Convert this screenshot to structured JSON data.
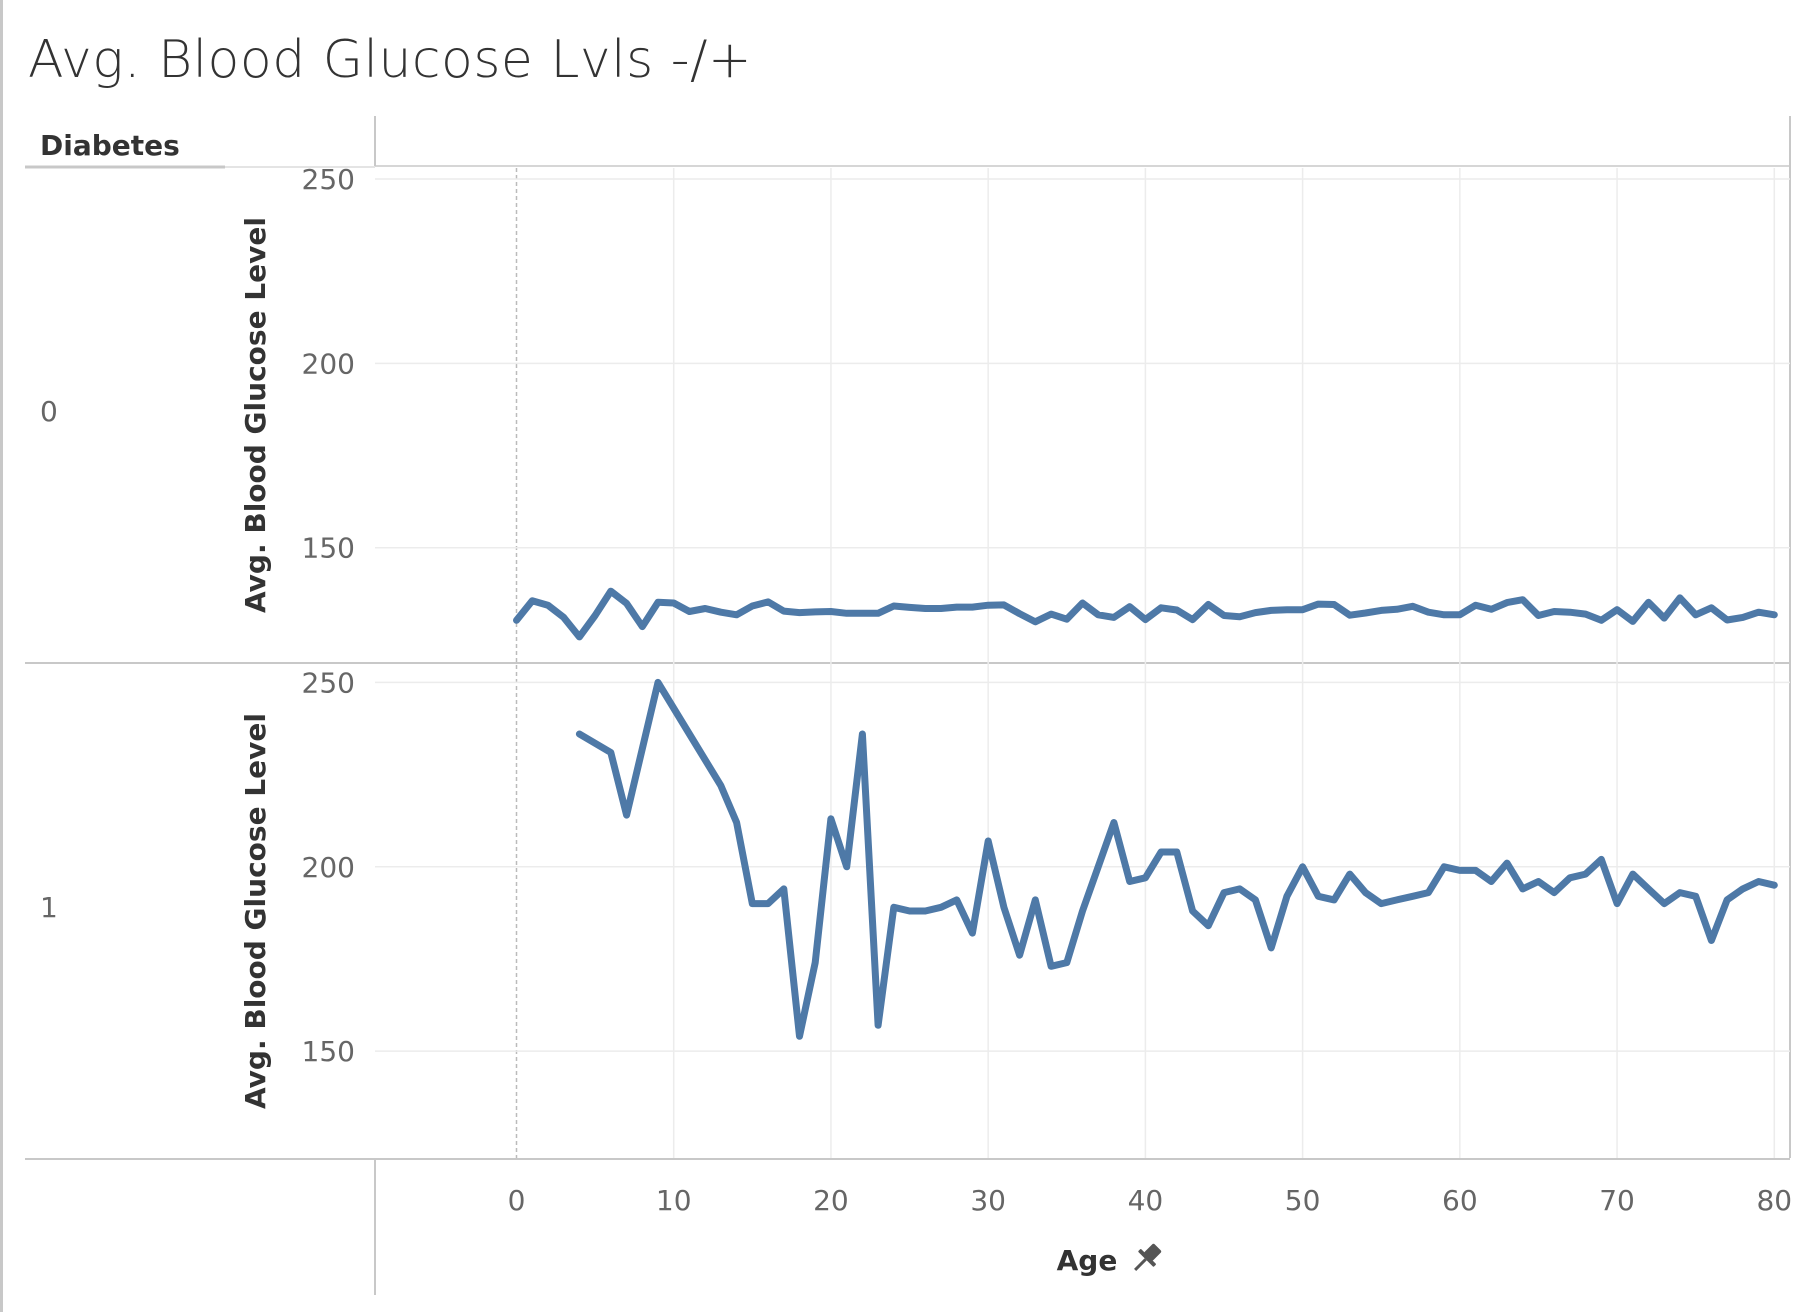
{
  "title": "Avg. Blood Glucose Lvls -/+",
  "chart_data": {
    "type": "line",
    "row_dimension": "Diabetes",
    "xlabel": "Age",
    "ylabel": "Avg. Blood Glucose Level",
    "xlim": [
      -9,
      81
    ],
    "xticks": [
      0,
      10,
      20,
      30,
      40,
      50,
      60,
      70,
      80
    ],
    "yticks": [
      150,
      200,
      250
    ],
    "grid": true,
    "legend": "none",
    "colors": {
      "line": "#4e79a7",
      "grid": "#ececec",
      "border": "#c8c8c8",
      "zero_line": "#bbbbbb"
    },
    "icons": {
      "xlabel": "pin-icon"
    },
    "panels": [
      {
        "row_label": "0",
        "ylim": [
          119,
          253
        ],
        "series": [
          {
            "x": [
              0,
              1,
              2,
              3,
              4,
              5,
              6,
              7,
              8,
              9,
              10,
              11,
              12,
              13,
              14,
              15,
              16,
              17,
              18,
              19,
              20,
              21,
              22,
              23,
              24,
              25,
              26,
              27,
              28,
              29,
              30,
              31,
              32,
              33,
              34,
              35,
              36,
              37,
              38,
              39,
              40,
              41,
              42,
              43,
              44,
              45,
              46,
              47,
              48,
              49,
              50,
              51,
              52,
              53,
              54,
              55,
              56,
              57,
              58,
              59,
              60,
              61,
              62,
              63,
              64,
              65,
              66,
              67,
              68,
              69,
              70,
              71,
              72,
              73,
              74,
              75,
              76,
              77,
              78,
              79,
              80
            ],
            "y": [
              130.3,
              135.6,
              134.4,
              131.1,
              125.8,
              131.6,
              138.2,
              134.9,
              128.6,
              135.2,
              135.0,
              132.7,
              133.5,
              132.5,
              131.8,
              134.2,
              135.3,
              132.8,
              132.4,
              132.6,
              132.7,
              132.2,
              132.2,
              132.2,
              134.2,
              133.8,
              133.5,
              133.5,
              133.9,
              133.9,
              134.4,
              134.5,
              132.1,
              129.9,
              132.0,
              130.6,
              135.0,
              131.8,
              131.1,
              134.0,
              130.5,
              133.7,
              133.1,
              130.5,
              134.6,
              131.6,
              131.3,
              132.4,
              133.0,
              133.2,
              133.2,
              134.7,
              134.6,
              131.7,
              132.3,
              133.0,
              133.3,
              134.1,
              132.5,
              131.8,
              131.8,
              134.4,
              133.3,
              135.1,
              135.9,
              131.6,
              132.7,
              132.5,
              132.0,
              130.3,
              133.2,
              130.0,
              135.2,
              130.9,
              136.4,
              131.8,
              133.7,
              130.4,
              131.1,
              132.5,
              131.8
            ]
          }
        ]
      },
      {
        "row_label": "1",
        "ylim": [
          121,
          255
        ],
        "series": [
          {
            "x": [
              4,
              6,
              7,
              9,
              11,
              13,
              14,
              15,
              16,
              17,
              18,
              19,
              20,
              21,
              22,
              23,
              24,
              25,
              26,
              27,
              28,
              29,
              30,
              31,
              32,
              33,
              34,
              35,
              36,
              37,
              38,
              39,
              40,
              41,
              42,
              43,
              44,
              45,
              46,
              47,
              48,
              49,
              50,
              51,
              52,
              53,
              54,
              55,
              56,
              57,
              58,
              59,
              60,
              61,
              62,
              63,
              64,
              65,
              66,
              67,
              68,
              69,
              70,
              71,
              72,
              73,
              74,
              75,
              76,
              77,
              78,
              79,
              80
            ],
            "y": [
              236,
              231,
              214,
              250,
              236,
              222,
              212,
              190,
              190,
              194,
              154,
              174,
              213,
              200,
              236,
              157,
              189,
              188,
              188,
              189,
              191,
              182,
              207,
              189,
              176,
              191,
              173,
              174,
              188,
              200,
              212,
              196,
              197,
              204,
              204,
              188,
              184,
              193,
              194,
              191,
              178,
              192,
              200,
              192,
              191,
              198,
              193,
              190,
              191,
              192,
              193,
              200,
              199,
              199,
              196,
              201,
              194,
              196,
              193,
              197,
              198,
              202,
              190,
              198,
              194,
              190,
              193,
              192,
              180,
              191,
              194,
              196,
              195
            ]
          }
        ]
      }
    ]
  }
}
